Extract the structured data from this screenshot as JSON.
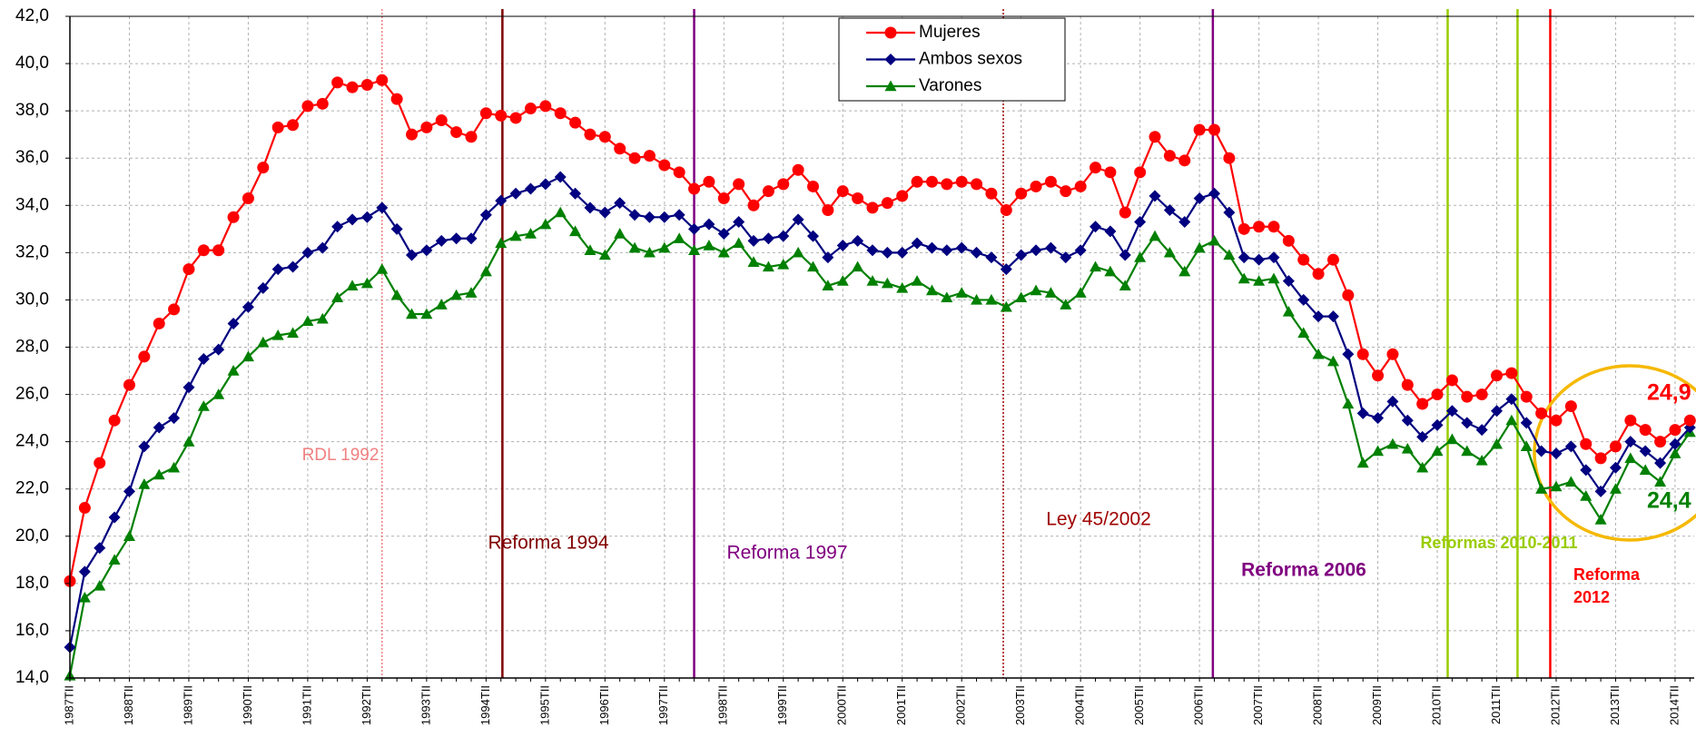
{
  "chart_data": {
    "type": "line",
    "categories": [
      "1987TII",
      null,
      null,
      null,
      "1988TII",
      null,
      null,
      null,
      "1989TII",
      null,
      null,
      null,
      "1990TII",
      null,
      null,
      null,
      "1991TII",
      null,
      null,
      null,
      "1992TII",
      null,
      null,
      null,
      "1993TII",
      null,
      null,
      null,
      "1994TII",
      null,
      null,
      null,
      "1995TII",
      null,
      null,
      null,
      "1996TII",
      null,
      null,
      null,
      "1997TII",
      null,
      null,
      null,
      "1998TII",
      null,
      null,
      null,
      "1999TII",
      null,
      null,
      null,
      "2000TII",
      null,
      null,
      null,
      "2001TII",
      null,
      null,
      null,
      "2002TII",
      null,
      null,
      null,
      "2003TII",
      null,
      null,
      null,
      "2004TII",
      null,
      null,
      null,
      "2005TII",
      null,
      null,
      null,
      "2006TII",
      null,
      null,
      null,
      "2007TII",
      null,
      null,
      null,
      "2008TII",
      null,
      null,
      null,
      "2009TII",
      null,
      null,
      null,
      "2010TII",
      null,
      null,
      null,
      "2011TII",
      null,
      null,
      null,
      "2012TII",
      null,
      null,
      null,
      "2013TII",
      null,
      null,
      null,
      "2014TII",
      null
    ],
    "series": [
      {
        "name": "Mujeres",
        "color": "#ff0000",
        "marker": "circle",
        "values": [
          18.1,
          21.2,
          23.1,
          24.9,
          26.4,
          27.6,
          29.0,
          29.6,
          31.3,
          32.1,
          32.1,
          33.5,
          34.3,
          35.6,
          37.3,
          37.4,
          38.2,
          38.3,
          39.2,
          39.0,
          39.1,
          39.3,
          38.5,
          37.0,
          37.3,
          37.6,
          37.1,
          36.9,
          37.9,
          37.8,
          37.7,
          38.1,
          38.2,
          37.9,
          37.5,
          37.0,
          36.9,
          36.4,
          36.0,
          36.1,
          35.7,
          35.4,
          34.7,
          35.0,
          34.3,
          34.9,
          34.0,
          34.6,
          34.9,
          35.5,
          34.8,
          33.8,
          34.6,
          34.3,
          33.9,
          34.1,
          34.4,
          35.0,
          35.0,
          34.9,
          35.0,
          34.9,
          34.5,
          33.8,
          34.5,
          34.8,
          35.0,
          34.6,
          34.8,
          35.6,
          35.4,
          33.7,
          35.4,
          36.9,
          36.1,
          35.9,
          37.2,
          37.2,
          36.0,
          33.0,
          33.1,
          33.1,
          32.5,
          31.7,
          31.1,
          31.7,
          30.2,
          27.7,
          26.8,
          27.7,
          26.4,
          25.6,
          26.0,
          26.6,
          25.9,
          26.0,
          26.8,
          26.9,
          25.9,
          25.2,
          24.9,
          25.5,
          23.9,
          23.3,
          23.8,
          24.9,
          24.5,
          24.0,
          24.5,
          24.9
        ]
      },
      {
        "name": "Ambos sexos",
        "color": "#000080",
        "marker": "diamond",
        "values": [
          15.3,
          18.5,
          19.5,
          20.8,
          21.9,
          23.8,
          24.6,
          25.0,
          26.3,
          27.5,
          27.9,
          29.0,
          29.7,
          30.5,
          31.3,
          31.4,
          32.0,
          32.2,
          33.1,
          33.4,
          33.5,
          33.9,
          33.0,
          31.9,
          32.1,
          32.5,
          32.6,
          32.6,
          33.6,
          34.2,
          34.5,
          34.7,
          34.9,
          35.2,
          34.5,
          33.9,
          33.7,
          34.1,
          33.6,
          33.5,
          33.5,
          33.6,
          33.0,
          33.2,
          32.8,
          33.3,
          32.5,
          32.6,
          32.7,
          33.4,
          32.7,
          31.8,
          32.3,
          32.5,
          32.1,
          32.0,
          32.0,
          32.4,
          32.2,
          32.1,
          32.2,
          32.0,
          31.8,
          31.3,
          31.9,
          32.1,
          32.2,
          31.8,
          32.1,
          33.1,
          32.9,
          31.9,
          33.3,
          34.4,
          33.8,
          33.3,
          34.3,
          34.5,
          33.7,
          31.8,
          31.7,
          31.8,
          30.8,
          30.0,
          29.3,
          29.3,
          27.7,
          25.2,
          25.0,
          25.7,
          24.9,
          24.2,
          24.7,
          25.3,
          24.8,
          24.5,
          25.3,
          25.8,
          24.8,
          23.6,
          23.5,
          23.8,
          22.8,
          21.9,
          22.9,
          24.0,
          23.6,
          23.1,
          23.9,
          24.6
        ]
      },
      {
        "name": "Varones",
        "color": "#008000",
        "marker": "triangle",
        "values": [
          14.1,
          17.4,
          17.9,
          19.0,
          20.0,
          22.2,
          22.6,
          22.9,
          24.0,
          25.5,
          26.0,
          27.0,
          27.6,
          28.2,
          28.5,
          28.6,
          29.1,
          29.2,
          30.1,
          30.6,
          30.7,
          31.3,
          30.2,
          29.4,
          29.4,
          29.8,
          30.2,
          30.3,
          31.2,
          32.4,
          32.7,
          32.8,
          33.2,
          33.7,
          32.9,
          32.1,
          31.9,
          32.8,
          32.2,
          32.0,
          32.2,
          32.6,
          32.1,
          32.3,
          32.0,
          32.4,
          31.6,
          31.4,
          31.5,
          32.0,
          31.4,
          30.6,
          30.8,
          31.4,
          30.8,
          30.7,
          30.5,
          30.8,
          30.4,
          30.1,
          30.3,
          30.0,
          30.0,
          29.7,
          30.1,
          30.4,
          30.3,
          29.8,
          30.3,
          31.4,
          31.2,
          30.6,
          31.8,
          32.7,
          32.0,
          31.2,
          32.2,
          32.5,
          31.9,
          30.9,
          30.8,
          30.9,
          29.5,
          28.6,
          27.7,
          27.4,
          25.6,
          23.1,
          23.6,
          23.9,
          23.7,
          22.9,
          23.6,
          24.1,
          23.6,
          23.2,
          23.9,
          24.9,
          23.8,
          22.0,
          22.1,
          22.3,
          21.7,
          20.7,
          22.0,
          23.3,
          22.8,
          22.3,
          23.5,
          24.4
        ]
      }
    ],
    "ylim": [
      14,
      42
    ],
    "yticks": [
      {
        "value": 14,
        "label": "14,0"
      },
      {
        "value": 16,
        "label": "16,0"
      },
      {
        "value": 18,
        "label": "18,0"
      },
      {
        "value": 20,
        "label": "20,0"
      },
      {
        "value": 22,
        "label": "22,0"
      },
      {
        "value": 24,
        "label": "24,0"
      },
      {
        "value": 26,
        "label": "26,0"
      },
      {
        "value": 28,
        "label": "28,0"
      },
      {
        "value": 30,
        "label": "30,0"
      },
      {
        "value": 32,
        "label": "32,0"
      },
      {
        "value": 34,
        "label": "34,0"
      },
      {
        "value": 36,
        "label": "36,0"
      },
      {
        "value": 38,
        "label": "38,0"
      },
      {
        "value": 40,
        "label": "40,0"
      },
      {
        "value": 42,
        "label": "42,0"
      }
    ],
    "grid": true,
    "legend": "top-center",
    "annotations": [
      {
        "label": [
          "RDL 1992"
        ],
        "x": [
          21.0
        ],
        "color": "#f08080",
        "dashed": true
      },
      {
        "label": [
          "Reforma 1994"
        ],
        "x": [
          29.1
        ],
        "color": "#800000",
        "dashed": false
      },
      {
        "label": [
          "Reforma 1997"
        ],
        "x": [
          42.0
        ],
        "color": "#800080",
        "dashed": false
      },
      {
        "label": [
          "Ley 45/2002"
        ],
        "x": [
          62.8
        ],
        "color": "#a00000",
        "dashed": true
      },
      {
        "label": [
          "Reforma 2006"
        ],
        "x": [
          76.9
        ],
        "color": "#800080",
        "dashed": false
      },
      {
        "label": [
          "Reformas 2010-2011"
        ],
        "x": [
          92.7,
          97.4
        ],
        "color": "#99cc00",
        "dashed": false
      },
      {
        "label": [
          "Reforma",
          "2012"
        ],
        "x": [
          99.6
        ],
        "color": "#ff0000",
        "dashed": false
      }
    ],
    "callouts": [
      {
        "text": "24,9",
        "color": "#ff0000"
      },
      {
        "text": "24,4",
        "color": "#008000"
      }
    ]
  }
}
